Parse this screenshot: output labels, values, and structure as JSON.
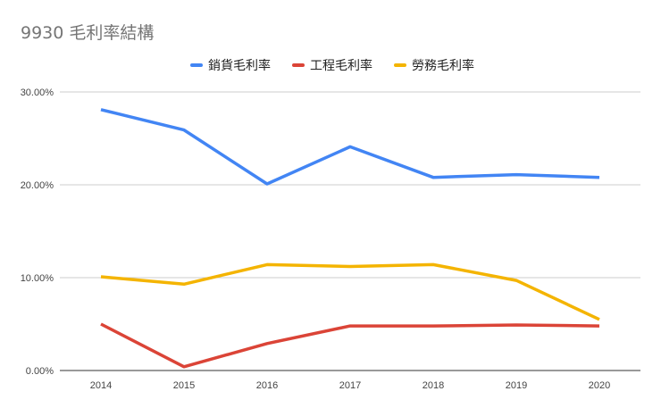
{
  "title": "9930 毛利率結構",
  "legend": [
    {
      "label": "銷貨毛利率",
      "color": "#4285F4"
    },
    {
      "label": "工程毛利率",
      "color": "#DB4437"
    },
    {
      "label": "勞務毛利率",
      "color": "#F4B400"
    }
  ],
  "axis": {
    "y_ticks": [
      "0.00%",
      "10.00%",
      "20.00%",
      "30.00%"
    ],
    "x_ticks": [
      "2014",
      "2015",
      "2016",
      "2017",
      "2018",
      "2019",
      "2020"
    ]
  },
  "chart_data": {
    "type": "line",
    "title": "9930 毛利率結構",
    "xlabel": "",
    "ylabel": "",
    "categories": [
      "2014",
      "2015",
      "2016",
      "2017",
      "2018",
      "2019",
      "2020"
    ],
    "series": [
      {
        "name": "銷貨毛利率",
        "color": "#4285F4",
        "values": [
          28.1,
          25.9,
          20.1,
          24.1,
          20.8,
          21.1,
          20.8
        ]
      },
      {
        "name": "工程毛利率",
        "color": "#DB4437",
        "values": [
          5.0,
          0.4,
          2.9,
          4.8,
          4.8,
          4.9,
          4.8
        ]
      },
      {
        "name": "勞務毛利率",
        "color": "#F4B400",
        "values": [
          10.1,
          9.3,
          11.4,
          11.2,
          11.4,
          9.7,
          5.5
        ]
      }
    ],
    "ylim": [
      0,
      30
    ],
    "y_unit": "%",
    "grid": true,
    "legend_position": "top"
  }
}
